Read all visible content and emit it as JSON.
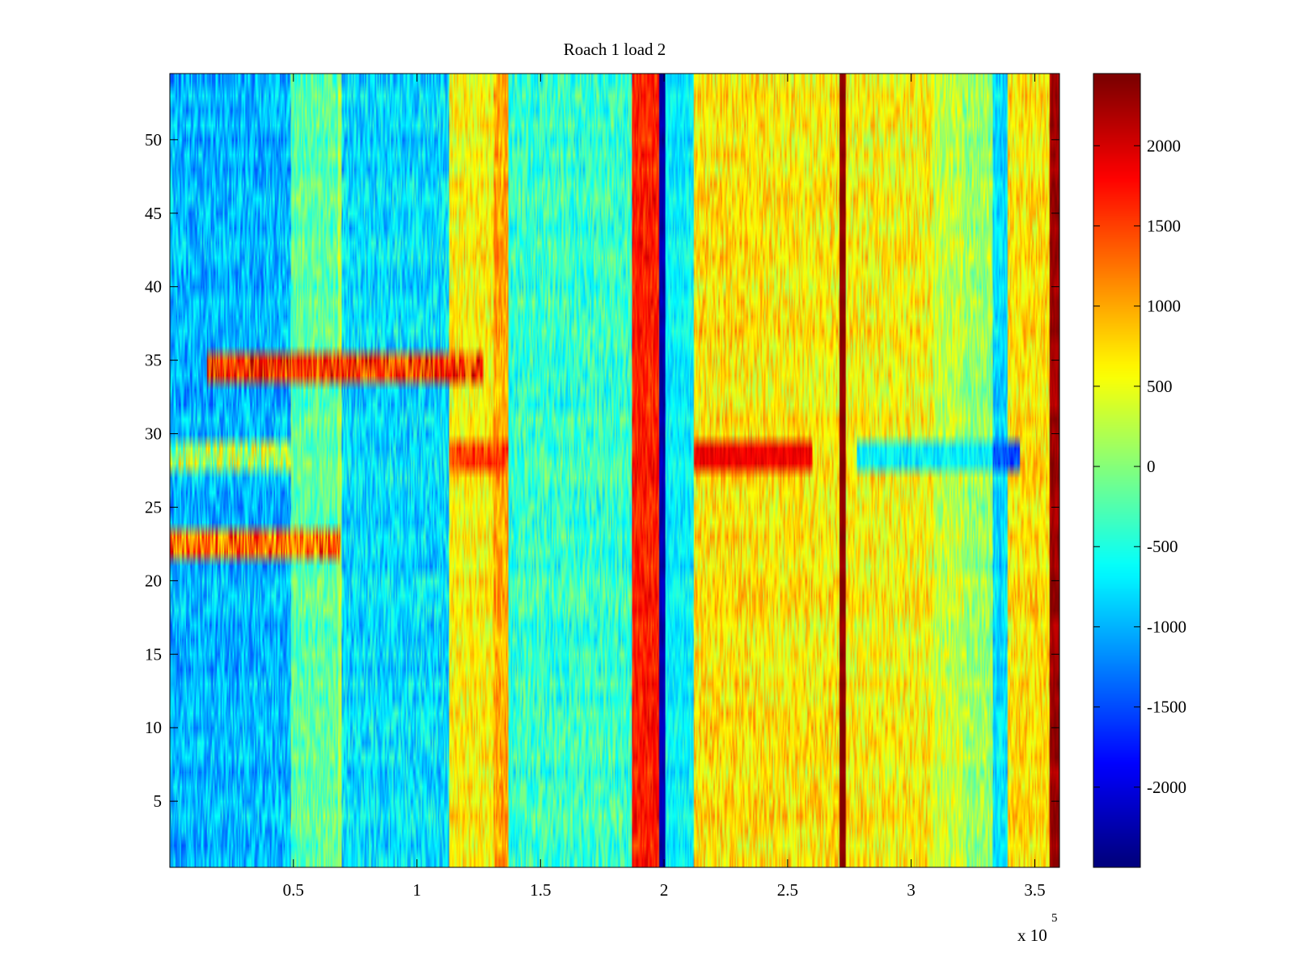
{
  "chart_data": {
    "type": "heatmap",
    "title": "Roach 1 load 2",
    "xlabel": "",
    "ylabel": "",
    "xlim": [
      0,
      360000
    ],
    "ylim": [
      0.5,
      54.5
    ],
    "rows": 54,
    "x_ticks": [
      50000,
      100000,
      150000,
      200000,
      250000,
      300000,
      350000
    ],
    "x_tick_labels": [
      "0.5",
      "1",
      "1.5",
      "2",
      "2.5",
      "3",
      "3.5"
    ],
    "x_exponent_label": "x 10",
    "x_exponent_power": "5",
    "y_ticks": [
      5,
      10,
      15,
      20,
      25,
      30,
      35,
      40,
      45,
      50
    ],
    "y_tick_labels": [
      "5",
      "10",
      "15",
      "20",
      "25",
      "30",
      "35",
      "40",
      "45",
      "50"
    ],
    "colormap": "jet",
    "clim": [
      -2500,
      2450
    ],
    "colorbar_ticks": [
      2000,
      1500,
      1000,
      500,
      0,
      -500,
      -1000,
      -1500,
      -2000
    ],
    "colorbar_tick_labels": [
      "2000",
      "1500",
      "1000",
      "500",
      "0",
      "-500",
      "-1000",
      "-1500",
      "-2000"
    ],
    "column_bands": [
      {
        "x_start": 0,
        "x_end": 49000,
        "base_value": -1000,
        "noise": 450
      },
      {
        "x_start": 49000,
        "x_end": 68000,
        "base_value": -200,
        "noise": 400
      },
      {
        "x_start": 68000,
        "x_end": 69500,
        "base_value": 200,
        "noise": 300
      },
      {
        "x_start": 69500,
        "x_end": 113000,
        "base_value": -800,
        "noise": 450
      },
      {
        "x_start": 113000,
        "x_end": 131000,
        "base_value": 600,
        "noise": 400
      },
      {
        "x_start": 131000,
        "x_end": 137000,
        "base_value": 1000,
        "noise": 350
      },
      {
        "x_start": 137000,
        "x_end": 138500,
        "base_value": -500,
        "noise": 350
      },
      {
        "x_start": 138500,
        "x_end": 187000,
        "base_value": -400,
        "noise": 450
      },
      {
        "x_start": 187000,
        "x_end": 198000,
        "base_value": 1700,
        "noise": 300
      },
      {
        "x_start": 198000,
        "x_end": 200500,
        "base_value": -2300,
        "noise": 120
      },
      {
        "x_start": 200500,
        "x_end": 212000,
        "base_value": -700,
        "noise": 300
      },
      {
        "x_start": 212000,
        "x_end": 240000,
        "base_value": 700,
        "noise": 450
      },
      {
        "x_start": 240000,
        "x_end": 271000,
        "base_value": 650,
        "noise": 450
      },
      {
        "x_start": 271000,
        "x_end": 273500,
        "base_value": 2400,
        "noise": 60
      },
      {
        "x_start": 273500,
        "x_end": 309000,
        "base_value": 600,
        "noise": 450
      },
      {
        "x_start": 309000,
        "x_end": 321000,
        "base_value": 300,
        "noise": 400
      },
      {
        "x_start": 321000,
        "x_end": 333000,
        "base_value": 100,
        "noise": 400
      },
      {
        "x_start": 333000,
        "x_end": 339000,
        "base_value": -800,
        "noise": 300
      },
      {
        "x_start": 339000,
        "x_end": 356000,
        "base_value": 700,
        "noise": 400
      },
      {
        "x_start": 356000,
        "x_end": 360000,
        "base_value": 2300,
        "noise": 150
      }
    ],
    "row_anomalies": [
      {
        "rows": [
          34,
          35
        ],
        "x_start": 15000,
        "x_end": 127000,
        "value": 1600,
        "noise": 700
      },
      {
        "rows": [
          22,
          23
        ],
        "x_start": 0,
        "x_end": 69000,
        "value": 1300,
        "noise": 800
      },
      {
        "rows": [
          28,
          29
        ],
        "x_start": 113000,
        "x_end": 137000,
        "value": 1500,
        "noise": 400
      },
      {
        "rows": [
          28,
          29
        ],
        "x_start": 212000,
        "x_end": 260000,
        "value": 1900,
        "noise": 200
      },
      {
        "rows": [
          28,
          29
        ],
        "x_start": 278000,
        "x_end": 333000,
        "value": -700,
        "noise": 300
      },
      {
        "rows": [
          28,
          29
        ],
        "x_start": 333000,
        "x_end": 344000,
        "value": -1500,
        "noise": 300
      },
      {
        "rows": [
          28,
          29
        ],
        "x_start": 0,
        "x_end": 49000,
        "value": 200,
        "noise": 800
      }
    ]
  }
}
